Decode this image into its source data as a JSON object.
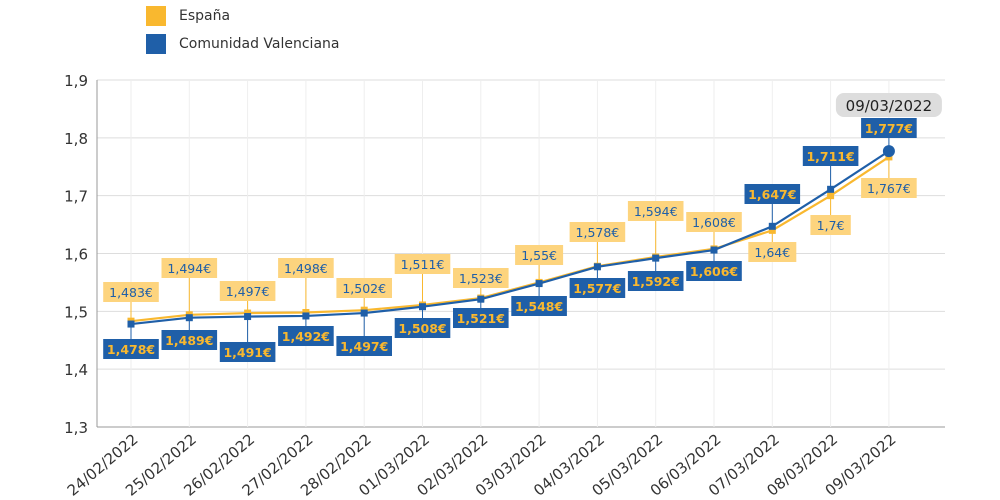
{
  "chart_data": {
    "type": "line",
    "title": "",
    "xlabel": "",
    "ylabel": "",
    "ylim": [
      1.3,
      1.9
    ],
    "yticks": [
      "1,3",
      "1,4",
      "1,5",
      "1,6",
      "1,7",
      "1,8",
      "1,9"
    ],
    "grid": true,
    "legend_position": "top-left",
    "categories": [
      "24/02/2022",
      "25/02/2022",
      "26/02/2022",
      "27/02/2022",
      "28/02/2022",
      "01/03/2022",
      "02/03/2022",
      "03/03/2022",
      "04/03/2022",
      "05/03/2022",
      "06/03/2022",
      "07/03/2022",
      "08/03/2022",
      "09/03/2022"
    ],
    "series": [
      {
        "name": "España",
        "color": "#f9b82f",
        "values": [
          1.483,
          1.494,
          1.497,
          1.498,
          1.502,
          1.511,
          1.523,
          1.55,
          1.578,
          1.594,
          1.608,
          1.64,
          1.7,
          1.767
        ],
        "labels": [
          "1,483€",
          "1,494€",
          "1,497€",
          "1,498€",
          "1,502€",
          "1,511€",
          "1,523€",
          "1,55€",
          "1,578€",
          "1,594€",
          "1,608€",
          "1,64€",
          "1,7€",
          "1,767€"
        ]
      },
      {
        "name": "Comunidad Valenciana",
        "color": "#1f5fa8",
        "values": [
          1.478,
          1.489,
          1.491,
          1.492,
          1.497,
          1.508,
          1.521,
          1.548,
          1.577,
          1.592,
          1.606,
          1.647,
          1.711,
          1.777
        ],
        "labels": [
          "1,478€",
          "1,489€",
          "1,491€",
          "1,492€",
          "1,497€",
          "1,508€",
          "1,521€",
          "1,548€",
          "1,577€",
          "1,592€",
          "1,606€",
          "1,647€",
          "1,711€",
          "1,777€"
        ]
      }
    ],
    "tooltip": "09/03/2022"
  }
}
